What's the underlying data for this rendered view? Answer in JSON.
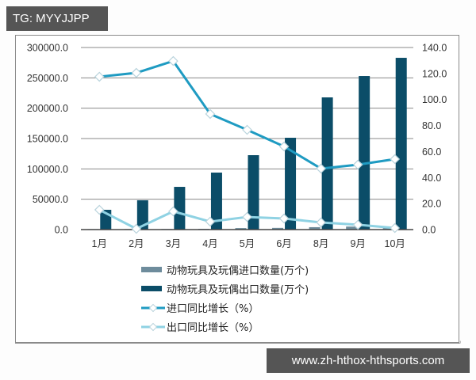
{
  "watermark_top": "TG: MYYJJPP",
  "watermark_bottom": "www.zh-hthox-hthsports.com",
  "colors": {
    "import_bar": "#6e8c9c",
    "export_bar": "#0b4d68",
    "import_line": "#1f9bc2",
    "export_line": "#8fd2e3",
    "grid": "#888888"
  },
  "chart_data": {
    "type": "bar+line",
    "title": "",
    "categories": [
      "1月",
      "2月",
      "3月",
      "4月",
      "5月",
      "6月",
      "8月",
      "9月",
      "10月"
    ],
    "series": [
      {
        "name": "动物玩具及玩偶进口数量(万个)",
        "type": "bar",
        "axis": "left",
        "values": [
          800,
          900,
          1000,
          1200,
          2500,
          2800,
          4000,
          5000,
          3600
        ]
      },
      {
        "name": "动物玩具及玩偶出口数量(万个)",
        "type": "bar",
        "axis": "left",
        "values": [
          32600,
          48300,
          70400,
          93900,
          122600,
          151300,
          217800,
          253000,
          283000
        ]
      },
      {
        "name": "进口同比增长（%）",
        "type": "line",
        "axis": "right",
        "values": [
          117.5,
          120.5,
          129.6,
          88.9,
          76.7,
          63.9,
          46.9,
          49.9,
          54.2
        ]
      },
      {
        "name": "出口同比增长（%）",
        "type": "line",
        "axis": "right",
        "values": [
          15.2,
          0.6,
          14.0,
          6.1,
          9.7,
          8.5,
          5.5,
          3.7,
          1.2
        ]
      }
    ],
    "left_axis": {
      "ylim": [
        0,
        300000
      ],
      "ticks": [
        "0.0",
        "50000.0",
        "100000.0",
        "150000.0",
        "200000.0",
        "250000.0",
        "300000.0"
      ]
    },
    "right_axis": {
      "ylim": [
        0,
        140
      ],
      "ticks": [
        "0.0",
        "20.0",
        "40.0",
        "60.0",
        "80.0",
        "100.0",
        "120.0",
        "140.0"
      ]
    },
    "xlabel": "",
    "ylabel": "",
    "grid": true,
    "legend_position": "bottom"
  }
}
